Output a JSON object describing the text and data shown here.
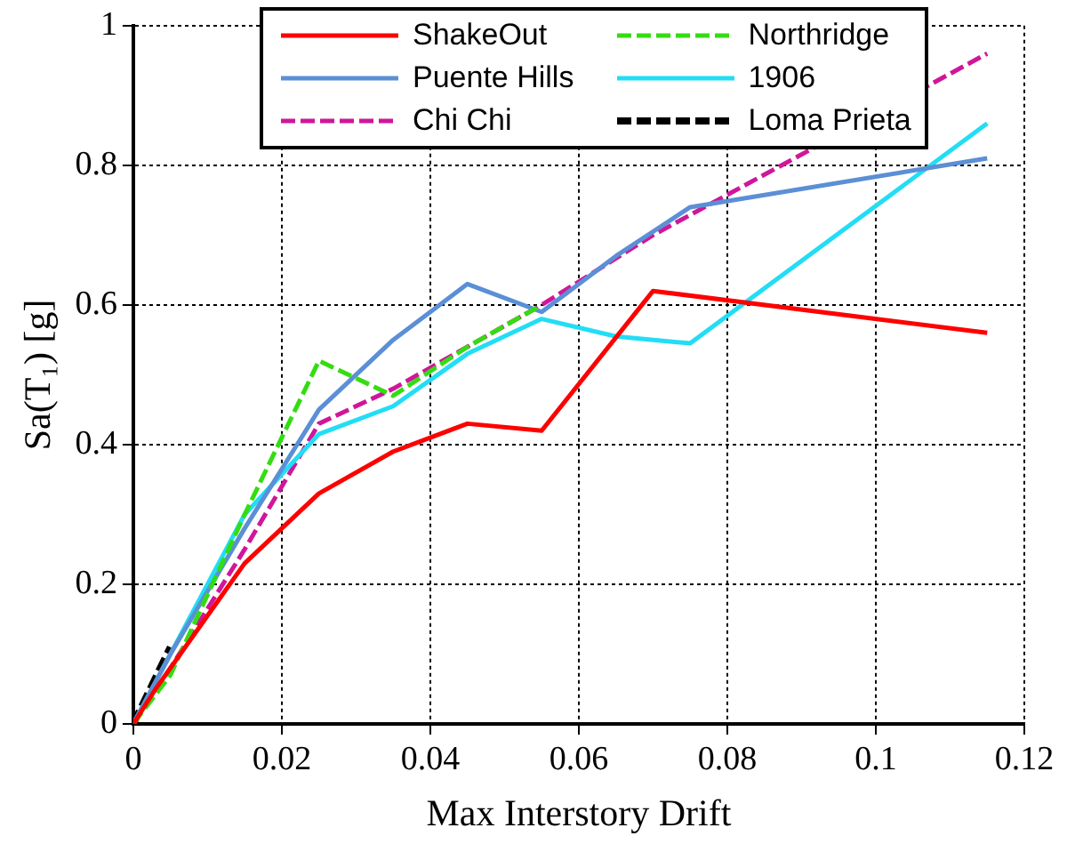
{
  "chart_data": {
    "type": "line",
    "xlabel": "Max Interstory Drift",
    "ylabel": "Sa(T₁) [g]",
    "xlim": [
      0,
      0.12
    ],
    "ylim": [
      0,
      1
    ],
    "xticks": [
      0,
      0.02,
      0.04,
      0.06,
      0.08,
      {
        "value": 0.1,
        "label": "0.1"
      },
      0.12
    ],
    "yticks": [
      0,
      0.2,
      0.4,
      0.6,
      0.8,
      1
    ],
    "grid": true,
    "legend": "top",
    "marker": "none",
    "series": [
      {
        "name": "ShakeOut",
        "color": "#ff0000",
        "line_style": "solid",
        "x": [
          0,
          0.003,
          0.015,
          0.025,
          0.035,
          0.045,
          0.055,
          0.07,
          0.115
        ],
        "values": [
          0,
          0.05,
          0.23,
          0.33,
          0.39,
          0.43,
          0.42,
          0.62,
          0.56
        ]
      },
      {
        "name": "Northridge",
        "color": "#33dd11",
        "line_style": "dashed",
        "x": [
          0,
          0.005,
          0.015,
          0.025,
          0.035,
          0.045,
          0.055
        ],
        "values": [
          0,
          0.07,
          0.3,
          0.52,
          0.47,
          0.54,
          0.6
        ]
      },
      {
        "name": "Puente Hills",
        "color": "#5b8fd6",
        "line_style": "solid",
        "x": [
          0,
          0.005,
          0.015,
          0.025,
          0.035,
          0.045,
          0.055,
          0.065,
          0.075,
          0.115
        ],
        "values": [
          0,
          0.1,
          0.28,
          0.45,
          0.55,
          0.63,
          0.59,
          0.67,
          0.74,
          0.81
        ]
      },
      {
        "name": "1906",
        "color": "#22ddf5",
        "line_style": "solid",
        "x": [
          0,
          0.005,
          0.015,
          0.025,
          0.035,
          0.045,
          0.055,
          0.065,
          0.075,
          0.115
        ],
        "values": [
          0,
          0.1,
          0.3,
          0.415,
          0.455,
          0.53,
          0.58,
          0.555,
          0.545,
          0.86
        ]
      },
      {
        "name": "Chi Chi",
        "color": "#d0169a",
        "line_style": "dashed",
        "x": [
          0,
          0.005,
          0.015,
          0.025,
          0.035,
          0.045,
          0.055,
          0.07,
          0.115
        ],
        "values": [
          0,
          0.08,
          0.25,
          0.43,
          0.48,
          0.54,
          0.6,
          0.7,
          0.96
        ]
      },
      {
        "name": "Loma Prieta",
        "color": "#000000",
        "line_style": "dashed",
        "x": [
          0,
          0.005
        ],
        "values": [
          0,
          0.11
        ]
      }
    ]
  }
}
